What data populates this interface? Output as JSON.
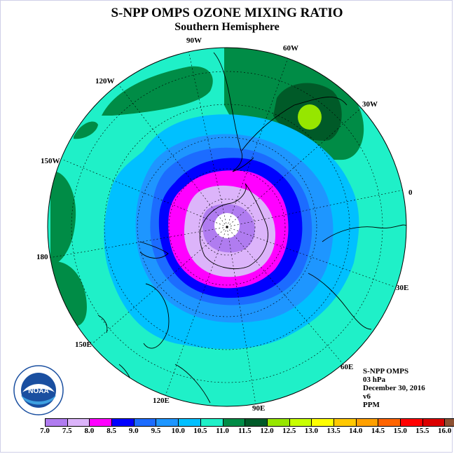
{
  "header": {
    "title": "S-NPP OMPS OZONE MIXING RATIO",
    "subtitle": "Southern Hemisphere"
  },
  "map": {
    "projection": "south polar stereographic",
    "longitude_labels": [
      {
        "text": "90W"
      },
      {
        "text": "60W"
      },
      {
        "text": "30W"
      },
      {
        "text": "0"
      },
      {
        "text": "30E"
      },
      {
        "text": "60E"
      },
      {
        "text": "90E"
      },
      {
        "text": "120E"
      },
      {
        "text": "150E"
      },
      {
        "text": "180"
      },
      {
        "text": "150W"
      },
      {
        "text": "120W"
      }
    ],
    "ozone_field_ppm_rings": [
      {
        "level": "7.0-7.5 (pole)",
        "color": "#ffffff"
      },
      {
        "level": "7.0-7.5",
        "color": "#b07cf0"
      },
      {
        "level": "7.5-8.0",
        "color": "#dcb4fa"
      },
      {
        "level": "8.0-8.5",
        "color": "#ff00ff"
      },
      {
        "level": "8.5-9.0",
        "color": "#0000ff"
      },
      {
        "level": "9.0-9.5",
        "color": "#1c6cff"
      },
      {
        "level": "9.5-10.0",
        "color": "#1e96ff"
      },
      {
        "level": "10.0-10.5",
        "color": "#00c0ff"
      },
      {
        "level": "10.5-11.0",
        "color": "#1ff0c8"
      },
      {
        "level": "11.0-11.5",
        "color": "#008c46"
      },
      {
        "level": "11.5-12.0",
        "color": "#005a28"
      },
      {
        "level": "12.0-12.5",
        "color": "#96e600"
      }
    ]
  },
  "info": {
    "instrument": "S-NPP OMPS",
    "level": "03 hPa",
    "date": "December 30, 2016",
    "version": "v6",
    "units": "PPM"
  },
  "logo": {
    "text": "NOAA",
    "ring_text": "NATIONAL OCEANIC AND ATMOSPHERIC ADMINISTRATION · U.S. DEPARTMENT OF COMMERCE"
  },
  "colorbar": {
    "colors": [
      "#b07cf0",
      "#dcb4fa",
      "#ff00ff",
      "#0000ff",
      "#1c6cff",
      "#1e96ff",
      "#00c0ff",
      "#1ff0c8",
      "#008c46",
      "#005a28",
      "#96e600",
      "#c8ff00",
      "#ffff00",
      "#ffc800",
      "#ffa000",
      "#ff6400",
      "#ff0000",
      "#dc0000",
      "#8c5032"
    ],
    "labels": [
      "7.0",
      "7.5",
      "8.0",
      "8.5",
      "9.0",
      "9.5",
      "10.0",
      "10.5",
      "11.0",
      "11.5",
      "12.0",
      "12.5",
      "13.0",
      "13.5",
      "14.0",
      "14.5",
      "15.0",
      "15.5",
      "16.0"
    ]
  }
}
